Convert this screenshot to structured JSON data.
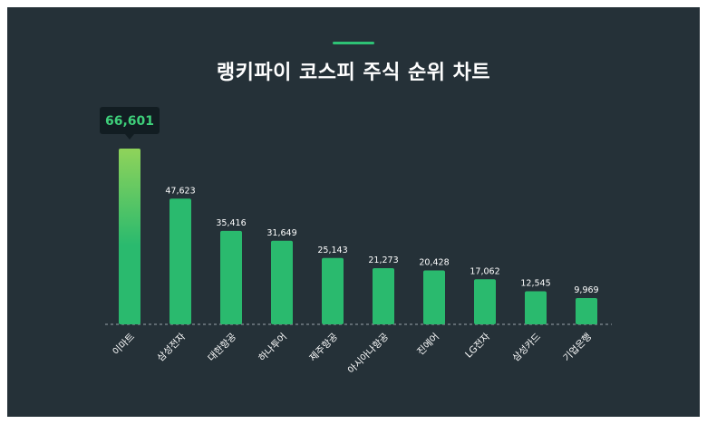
{
  "title": "랭키파이 코스피 주식 순위 차트",
  "colors": {
    "background": "#253138",
    "bar": "#2aba6e",
    "bar_highlight_top": "#8fd35a",
    "tooltip_bg": "#121d22",
    "tooltip_text": "#3ecf7a",
    "label": "#ffffff",
    "baseline": "#9aa5ab"
  },
  "chart_data": {
    "type": "bar",
    "title": "랭키파이 코스피 주식 순위 차트",
    "categories": [
      "이마트",
      "삼성전자",
      "대한항공",
      "하나투어",
      "제주항공",
      "아시아나항공",
      "진에어",
      "LG전자",
      "삼성카드",
      "기업은행"
    ],
    "values": [
      66601,
      47623,
      35416,
      31649,
      25143,
      21273,
      20428,
      17062,
      12545,
      9969
    ],
    "value_labels": [
      "66,601",
      "47,623",
      "35,416",
      "31,649",
      "25,143",
      "21,273",
      "20,428",
      "17,062",
      "12,545",
      "9,969"
    ],
    "highlight": "이마트",
    "xlabel": "",
    "ylabel": "",
    "grid": false,
    "legend": "none"
  }
}
